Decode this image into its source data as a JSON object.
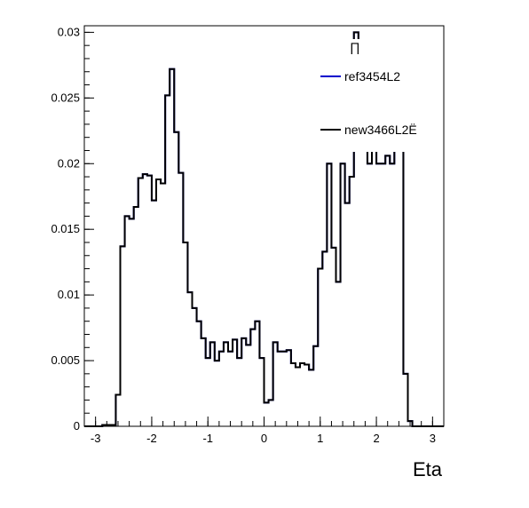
{
  "chart_data": {
    "type": "line",
    "title": "",
    "xlabel": "Eta",
    "ylabel": "",
    "xlim": [
      -3.2,
      3.2
    ],
    "ylim": [
      0,
      0.0305
    ],
    "xticks": [
      -3,
      -2,
      -1,
      0,
      1,
      2,
      3
    ],
    "xtick_labels": [
      "-3",
      "-2",
      "-1",
      "0",
      "1",
      "2",
      "3"
    ],
    "yticks": [
      0,
      0.005,
      0.01,
      0.015,
      0.02,
      0.025,
      0.03
    ],
    "ytick_labels": [
      "0",
      "0.005",
      "0.01",
      "0.015",
      "0.02",
      "0.025",
      "0.03"
    ],
    "grid": false,
    "legend_position": "top-right",
    "bins": {
      "start": -3.2,
      "width": 0.08,
      "count": 80
    },
    "series": [
      {
        "name": "ref3454L2",
        "color": "#0000cc",
        "values": [
          0,
          0,
          0,
          0,
          0.0001,
          0.0001,
          0.0001,
          0.0024,
          0.0137,
          0.016,
          0.0158,
          0.0167,
          0.0189,
          0.0192,
          0.0191,
          0.0172,
          0.0188,
          0.0185,
          0.0252,
          0.0272,
          0.0224,
          0.0193,
          0.014,
          0.0102,
          0.009,
          0.008,
          0.0067,
          0.0052,
          0.0064,
          0.005,
          0.0057,
          0.0064,
          0.0057,
          0.0066,
          0.0052,
          0.0067,
          0.0062,
          0.0074,
          0.008,
          0.0052,
          0.0018,
          0.002,
          0.0064,
          0.0057,
          0.0057,
          0.0058,
          0.0048,
          0.0045,
          0.0048,
          0.0047,
          0.0043,
          0.0061,
          0.012,
          0.0133,
          0.02,
          0.0136,
          0.011,
          0.02,
          0.017,
          0.019,
          0.03,
          0.022,
          0.021,
          0.02,
          0.0225,
          0.02,
          0.02,
          0.0206,
          0.02,
          0.021,
          0.021,
          0.004,
          0.0004,
          0,
          0,
          0,
          0,
          0,
          0,
          0
        ]
      },
      {
        "name": "new3466L2Ë",
        "color": "#000000",
        "values": [
          0,
          0,
          0,
          0,
          0.0001,
          0.0001,
          0.0001,
          0.0024,
          0.0137,
          0.016,
          0.0158,
          0.0167,
          0.0189,
          0.0192,
          0.0191,
          0.0172,
          0.0188,
          0.0185,
          0.0252,
          0.0272,
          0.0224,
          0.0193,
          0.014,
          0.0102,
          0.009,
          0.008,
          0.0067,
          0.0052,
          0.0064,
          0.005,
          0.0057,
          0.0064,
          0.0057,
          0.0066,
          0.0052,
          0.0067,
          0.0062,
          0.0074,
          0.008,
          0.0052,
          0.0018,
          0.002,
          0.0064,
          0.0057,
          0.0057,
          0.0058,
          0.0048,
          0.0045,
          0.0048,
          0.0047,
          0.0043,
          0.0061,
          0.012,
          0.0133,
          0.02,
          0.0136,
          0.011,
          0.02,
          0.017,
          0.019,
          0.03,
          0.022,
          0.021,
          0.02,
          0.0225,
          0.02,
          0.02,
          0.0206,
          0.02,
          0.021,
          0.021,
          0.004,
          0.0004,
          0,
          0,
          0,
          0,
          0,
          0,
          0
        ]
      }
    ]
  }
}
